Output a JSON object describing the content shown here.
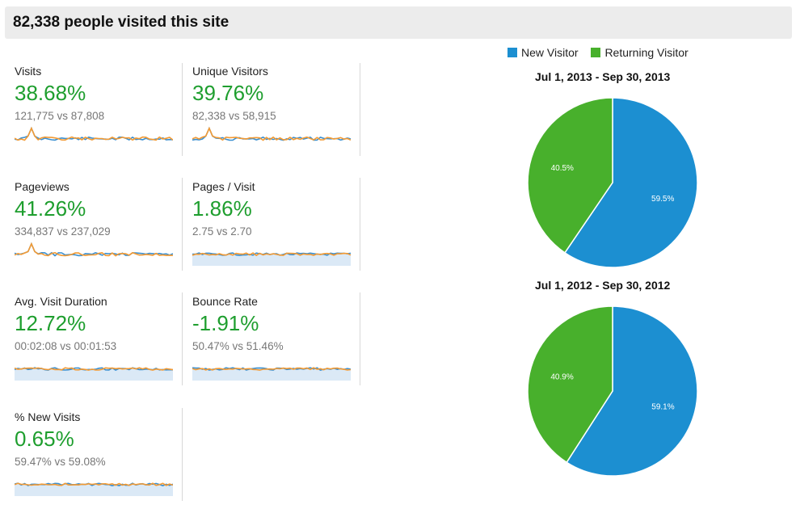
{
  "header": {
    "title": "82,338 people visited this site"
  },
  "colors": {
    "positive": "#1e9e2e",
    "new_visitor": "#1c8fd1",
    "returning_visitor": "#48b02c",
    "spark_blue": "#3a8fd0",
    "spark_orange": "#f39a33",
    "spark_fill": "#dbe9f6"
  },
  "metrics": [
    {
      "name": "Visits",
      "percent": "38.68%",
      "comparison": "121,775 vs 87,808"
    },
    {
      "name": "Unique Visitors",
      "percent": "39.76%",
      "comparison": "82,338 vs 58,915"
    },
    {
      "name": "Pageviews",
      "percent": "41.26%",
      "comparison": "334,837 vs 237,029"
    },
    {
      "name": "Pages / Visit",
      "percent": "1.86%",
      "comparison": "2.75 vs 2.70"
    },
    {
      "name": "Avg. Visit Duration",
      "percent": "12.72%",
      "comparison": "00:02:08 vs 00:01:53"
    },
    {
      "name": "Bounce Rate",
      "percent": "-1.91%",
      "comparison": "50.47% vs 51.46%"
    },
    {
      "name": "% New Visits",
      "percent": "0.65%",
      "comparison": "59.47% vs 59.08%"
    }
  ],
  "legend": [
    {
      "label": "New Visitor",
      "color": "#1c8fd1"
    },
    {
      "label": "Returning Visitor",
      "color": "#48b02c"
    }
  ],
  "pies": [
    {
      "title": "Jul 1, 2013 - Sep 30, 2013",
      "slices": [
        {
          "label": "59.5%",
          "value": 59.5,
          "color": "#1c8fd1"
        },
        {
          "label": "40.5%",
          "value": 40.5,
          "color": "#48b02c"
        }
      ]
    },
    {
      "title": "Jul 1, 2012 - Sep 30, 2012",
      "slices": [
        {
          "label": "59.1%",
          "value": 59.1,
          "color": "#1c8fd1"
        },
        {
          "label": "40.9%",
          "value": 40.9,
          "color": "#48b02c"
        }
      ]
    }
  ]
}
